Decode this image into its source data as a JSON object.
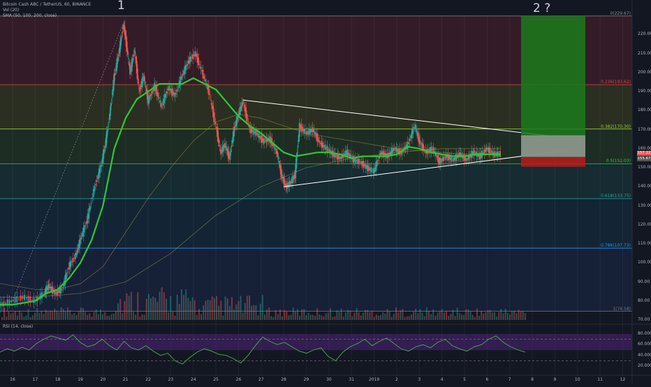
{
  "header": {
    "symbol": "Bitcoin Cash ABC / TetherUS, 60, BINANCE",
    "vol": "Vol (20)",
    "sma": "SMA (50, 100, 200, close)",
    "rsi": "RSI (14, close)"
  },
  "annotations": {
    "wave1": "1",
    "wave2": "2 ?"
  },
  "colors": {
    "background": "#131722",
    "up": "#26a69a",
    "down": "#ef5350",
    "sma50": "#2dc937",
    "target": "#1c7a1c",
    "stop": "#b71c1c",
    "rsi": "#4caf50"
  },
  "chart_data": {
    "type": "candlestick",
    "ylim": [
      70,
      230
    ],
    "y_ticks": [
      "220.00",
      "210.00",
      "200.00",
      "190.00",
      "180.00",
      "170.00",
      "160.00",
      "150.00",
      "140.00",
      "130.00",
      "120.00",
      "110.00",
      "100.00",
      "90.00",
      "80.00",
      "70.00"
    ],
    "x_ticks": [
      "16",
      "17",
      "18",
      "19",
      "20",
      "21",
      "22",
      "23",
      "24",
      "25",
      "26",
      "27",
      "28",
      "29",
      "30",
      "31",
      "2019",
      "2",
      "3",
      "4",
      "5",
      "6",
      "7",
      "8",
      "9",
      "10",
      "11",
      "12"
    ],
    "price_labels": [
      "157.22",
      "155.67"
    ],
    "fib_levels": [
      {
        "label": "0(229.67)",
        "price": 229.67
      },
      {
        "label": "0.236(193.62)",
        "price": 193.62
      },
      {
        "label": "0.382(170.30)",
        "price": 170.3
      },
      {
        "label": "0.5(152.03)",
        "price": 152.03
      },
      {
        "label": "0.618(133.75)",
        "price": 133.75
      },
      {
        "label": "0.786(107.73)",
        "price": 107.73
      },
      {
        "label": "1(74.58)",
        "price": 74.58
      }
    ],
    "position": {
      "target": 229.67,
      "entry": 155.67,
      "stop": 150.5
    },
    "triangle": {
      "upper": [
        [
          "26.2",
          185.5
        ],
        [
          "8.9",
          166.5
        ]
      ],
      "lower": [
        [
          "28.0",
          140.0
        ],
        [
          "9.5",
          159.0
        ]
      ]
    },
    "price_path": [
      [
        "15.0",
        79
      ],
      [
        "15.5",
        78
      ],
      [
        "16.0",
        80
      ],
      [
        "16.5",
        82
      ],
      [
        "17.0",
        80
      ],
      [
        "17.4",
        84
      ],
      [
        "17.6",
        88
      ],
      [
        "17.9",
        84
      ],
      [
        "18.2",
        86
      ],
      [
        "18.5",
        98
      ],
      [
        "18.8",
        104
      ],
      [
        "19.0",
        112
      ],
      [
        "19.3",
        122
      ],
      [
        "19.6",
        138
      ],
      [
        "19.9",
        150
      ],
      [
        "20.1",
        162
      ],
      [
        "20.3",
        178
      ],
      [
        "20.5",
        198
      ],
      [
        "20.7",
        210
      ],
      [
        "20.9",
        225
      ],
      [
        "21.0",
        218
      ],
      [
        "21.2",
        200
      ],
      [
        "21.4",
        212
      ],
      [
        "21.6",
        190
      ],
      [
        "21.8",
        198
      ],
      [
        "22.0",
        185
      ],
      [
        "22.3",
        193
      ],
      [
        "22.6",
        182
      ],
      [
        "22.9",
        192
      ],
      [
        "23.2",
        188
      ],
      [
        "23.5",
        198
      ],
      [
        "23.8",
        206
      ],
      [
        "24.1",
        210
      ],
      [
        "24.4",
        200
      ],
      [
        "24.7",
        190
      ],
      [
        "25.0",
        172
      ],
      [
        "25.2",
        158
      ],
      [
        "25.4",
        162
      ],
      [
        "25.6",
        155
      ],
      [
        "25.8",
        170
      ],
      [
        "26.0",
        178
      ],
      [
        "26.2",
        185
      ],
      [
        "26.5",
        170
      ],
      [
        "26.8",
        168
      ],
      [
        "27.1",
        164
      ],
      [
        "27.4",
        165
      ],
      [
        "27.7",
        158
      ],
      [
        "27.9",
        146
      ],
      [
        "28.1",
        140
      ],
      [
        "28.3",
        142
      ],
      [
        "28.5",
        146
      ],
      [
        "28.7",
        172
      ],
      [
        "29.0",
        168
      ],
      [
        "29.3",
        170
      ],
      [
        "29.6",
        163
      ],
      [
        "29.9",
        160
      ],
      [
        "30.2",
        157
      ],
      [
        "30.5",
        155
      ],
      [
        "30.8",
        158
      ],
      [
        "31.1",
        154
      ],
      [
        "31.4",
        153
      ],
      [
        "31.7",
        150
      ],
      [
        "32.0",
        148
      ],
      [
        "32.3",
        158
      ],
      [
        "32.6",
        156
      ],
      [
        "32.9",
        160
      ],
      [
        "33.2",
        158
      ],
      [
        "33.5",
        162
      ],
      [
        "33.8",
        172
      ],
      [
        "34.0",
        164
      ],
      [
        "34.3",
        158
      ],
      [
        "34.6",
        160
      ],
      [
        "34.9",
        153
      ],
      [
        "35.2",
        156
      ],
      [
        "35.5",
        154
      ],
      [
        "35.8",
        157
      ],
      [
        "36.1",
        154
      ],
      [
        "36.4",
        158
      ],
      [
        "36.7",
        156
      ],
      [
        "37.0",
        160
      ],
      [
        "37.3",
        157
      ],
      [
        "37.6",
        157.2
      ]
    ],
    "sma50": [
      [
        "15.0",
        78
      ],
      [
        "16.0",
        78
      ],
      [
        "17.0",
        80
      ],
      [
        "17.5",
        84
      ],
      [
        "18.0",
        86
      ],
      [
        "18.5",
        92
      ],
      [
        "19.0",
        100
      ],
      [
        "19.5",
        112
      ],
      [
        "20.0",
        130
      ],
      [
        "20.5",
        160
      ],
      [
        "21.0",
        176
      ],
      [
        "21.5",
        186
      ],
      [
        "22.0",
        190
      ],
      [
        "22.5",
        194
      ],
      [
        "23.0",
        194
      ],
      [
        "23.5",
        194
      ],
      [
        "24.0",
        197
      ],
      [
        "24.5",
        194
      ],
      [
        "25.0",
        191
      ],
      [
        "25.5",
        184
      ],
      [
        "26.0",
        177
      ],
      [
        "26.5",
        172
      ],
      [
        "27.0",
        168
      ],
      [
        "27.5",
        163
      ],
      [
        "28.0",
        158
      ],
      [
        "28.5",
        156
      ],
      [
        "29.0",
        157
      ],
      [
        "29.5",
        158
      ],
      [
        "30.0",
        158
      ],
      [
        "30.5",
        157
      ],
      [
        "31.0",
        155
      ],
      [
        "31.5",
        156
      ],
      [
        "32.0",
        156
      ],
      [
        "32.5",
        156
      ],
      [
        "33.0",
        157
      ],
      [
        "33.5",
        161
      ],
      [
        "34.0",
        160
      ],
      [
        "34.5",
        158
      ],
      [
        "35.0",
        157
      ],
      [
        "35.5",
        156
      ],
      [
        "36.0",
        156
      ],
      [
        "36.5",
        157
      ],
      [
        "37.0",
        157
      ],
      [
        "37.6",
        157
      ]
    ],
    "sma100": [
      [
        "15.0",
        90
      ],
      [
        "16.0",
        88
      ],
      [
        "17.0",
        86
      ],
      [
        "18.0",
        86
      ],
      [
        "19.0",
        89
      ],
      [
        "20.0",
        98
      ],
      [
        "21.0",
        116
      ],
      [
        "22.0",
        134
      ],
      [
        "23.0",
        150
      ],
      [
        "24.0",
        164
      ],
      [
        "25.0",
        174
      ],
      [
        "26.0",
        178
      ],
      [
        "27.0",
        176
      ],
      [
        "28.0",
        172
      ],
      [
        "29.0",
        168
      ],
      [
        "30.0",
        166
      ],
      [
        "31.0",
        164
      ],
      [
        "32.0",
        162
      ],
      [
        "33.0",
        160
      ],
      [
        "34.0",
        159
      ],
      [
        "35.0",
        158
      ],
      [
        "36.0",
        157
      ],
      [
        "37.6",
        157
      ]
    ],
    "sma200": [
      [
        "15.0",
        82
      ],
      [
        "17.0",
        82
      ],
      [
        "19.0",
        84
      ],
      [
        "21.0",
        90
      ],
      [
        "23.0",
        105
      ],
      [
        "25.0",
        125
      ],
      [
        "27.0",
        140
      ],
      [
        "29.0",
        150
      ],
      [
        "31.0",
        155
      ],
      [
        "33.0",
        158
      ],
      [
        "35.0",
        160
      ],
      [
        "37.6",
        160
      ]
    ],
    "rsi_ticks": [
      "80.000",
      "60.000",
      "40.000",
      "20.000"
    ],
    "rsi_values": [
      46,
      52,
      48,
      55,
      50,
      62,
      70,
      76,
      72,
      68,
      78,
      64,
      56,
      60,
      70,
      58,
      50,
      66,
      54,
      50,
      58,
      48,
      40,
      44,
      30,
      24,
      36,
      46,
      52,
      48,
      42,
      40,
      34,
      26,
      40,
      58,
      74,
      66,
      60,
      64,
      56,
      48,
      44,
      50,
      54,
      38,
      30,
      46,
      56,
      62,
      70,
      58,
      66,
      72,
      62,
      52,
      48,
      56,
      60,
      54,
      64,
      70,
      58,
      52,
      48,
      56,
      60,
      70,
      76,
      64,
      56,
      50,
      46
    ]
  }
}
